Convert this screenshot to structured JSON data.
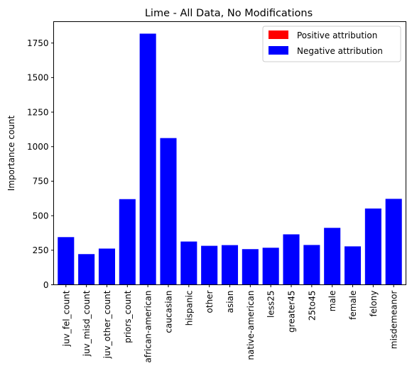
{
  "chart_data": {
    "type": "bar",
    "title": "Lime - All Data, No Modifications",
    "xlabel": "",
    "ylabel": "Importance count",
    "categories": [
      "juv_fel_count",
      "juv_misd_count",
      "juv_other_count",
      "priors_count",
      "african-american",
      "caucasian",
      "hispanic",
      "other",
      "asian",
      "native-american",
      "less25",
      "greater45",
      "25to45",
      "male",
      "female",
      "felony",
      "misdemeanor"
    ],
    "series": [
      {
        "name": "Positive attribution",
        "color": "#ff0000",
        "values": [
          0,
          0,
          0,
          0,
          0,
          0,
          0,
          0,
          0,
          0,
          0,
          0,
          0,
          0,
          0,
          0,
          0
        ]
      },
      {
        "name": "Negative attribution",
        "color": "#0000ff",
        "values": [
          345,
          222,
          262,
          620,
          1818,
          1062,
          313,
          282,
          287,
          258,
          268,
          365,
          288,
          412,
          278,
          552,
          622
        ]
      }
    ],
    "ylim": [
      0,
      1905
    ],
    "yticks": [
      0,
      250,
      500,
      750,
      1000,
      1250,
      1500,
      1750
    ],
    "grid": false,
    "legend": "top-right"
  }
}
